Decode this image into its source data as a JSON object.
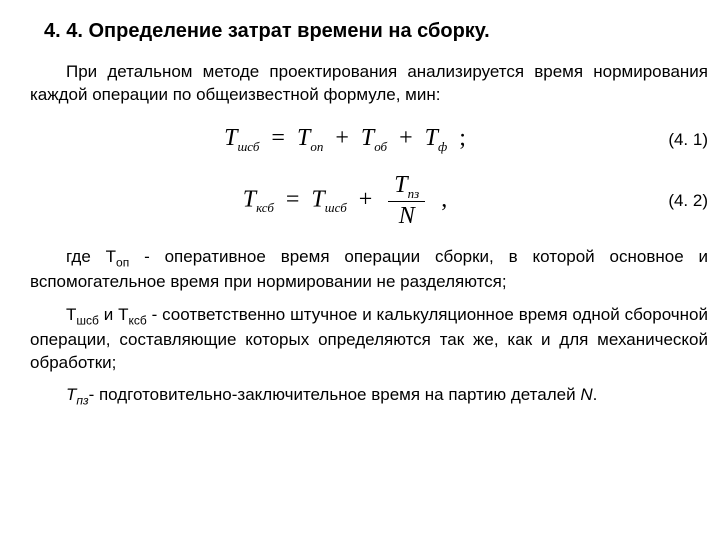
{
  "heading": "4. 4. Определение затрат времени на сборку.",
  "para1": "При детальном методе проектирования анализируется время нормирования каждой операции по общеизвестной формуле, мин:",
  "formula1": {
    "lhs_sym": "T",
    "lhs_sub": "шсб",
    "t1_sym": "T",
    "t1_sub": "оп",
    "t2_sym": "T",
    "t2_sub": "об",
    "t3_sym": "T",
    "t3_sub": "ф",
    "number": "(4. 1)"
  },
  "formula2": {
    "lhs_sym": "T",
    "lhs_sub": "ксб",
    "t1_sym": "T",
    "t1_sub": "шсб",
    "frac_top_sym": "T",
    "frac_top_sub": "пз",
    "frac_bot": "N",
    "number": "(4. 2)"
  },
  "def1_prefix": "где Т",
  "def1_sub": "оп",
  "def1_text": " - оперативное время операции сборки, в которой основное и вспомогательное время при нормировании не разделяются;",
  "def2_t1": "Т",
  "def2_t1_sub": "шсб",
  "def2_and": " и ",
  "def2_t2": "Т",
  "def2_t2_sub": "ксб",
  "def2_text": " - соответственно штучное и калькуляционное время одной сборочной операции, составляющие которых определяются так же, как и для механической обработки;",
  "def3_t": "Т",
  "def3_t_sub": "пз",
  "def3_text1": "- подготовительно-заключительное время на партию деталей ",
  "def3_N": "N",
  "def3_text2": "."
}
